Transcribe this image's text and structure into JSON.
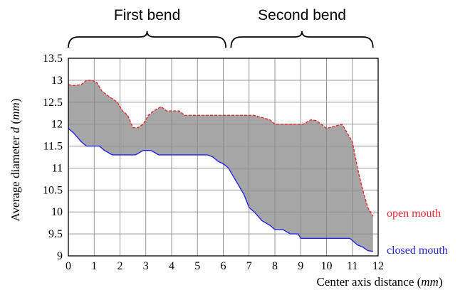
{
  "chart_data": {
    "type": "area",
    "xlabel": "Center axis distance (mm)",
    "ylabel": "Average diameter d (mm)",
    "xlabel_parts": [
      "Center axis distance (",
      "mm",
      ")"
    ],
    "ylabel_parts": [
      "Average diameter ",
      "d",
      " (",
      "mm",
      ")"
    ],
    "xlim": [
      0,
      12
    ],
    "ylim": [
      9,
      13.5
    ],
    "xticks": [
      0,
      1,
      2,
      3,
      4,
      5,
      6,
      7,
      8,
      9,
      10,
      11,
      12
    ],
    "yticks": [
      9,
      9.5,
      10,
      10.5,
      11,
      11.5,
      12,
      12.5,
      13,
      13.5
    ],
    "grid": true,
    "fill_color": "#a6a6a6",
    "brace_labels": [
      {
        "text": "First bend",
        "x_start": 0,
        "x_end": 6.1
      },
      {
        "text": "Second bend",
        "x_start": 6.3,
        "x_end": 11.8
      }
    ],
    "series": [
      {
        "name": "open mouth",
        "color": "#e8282b",
        "style": "dashed",
        "x": [
          0,
          0.2,
          0.5,
          0.7,
          0.9,
          1.1,
          1.3,
          1.6,
          1.9,
          2.1,
          2.3,
          2.5,
          2.7,
          2.9,
          3.1,
          3.3,
          3.6,
          3.8,
          4.1,
          4.3,
          4.5,
          4.8,
          5.2,
          5.6,
          6.0,
          6.4,
          6.8,
          7.2,
          7.5,
          7.8,
          8.0,
          8.3,
          8.6,
          8.9,
          9.1,
          9.4,
          9.6,
          9.8,
          10.0,
          10.3,
          10.6,
          10.8,
          11.0,
          11.2,
          11.4,
          11.6,
          11.8
        ],
        "y": [
          12.9,
          12.88,
          12.9,
          13.0,
          13.0,
          12.95,
          12.75,
          12.62,
          12.5,
          12.3,
          12.2,
          11.92,
          11.92,
          12.0,
          12.2,
          12.3,
          12.4,
          12.3,
          12.3,
          12.3,
          12.2,
          12.2,
          12.2,
          12.2,
          12.2,
          12.2,
          12.2,
          12.2,
          12.15,
          12.1,
          12.0,
          12.0,
          12.0,
          12.0,
          12.0,
          12.1,
          12.08,
          12.0,
          11.9,
          11.95,
          12.0,
          11.8,
          11.6,
          11.0,
          10.5,
          10.1,
          9.9
        ]
      },
      {
        "name": "closed mouth",
        "color": "#2424e8",
        "style": "solid",
        "x": [
          0,
          0.2,
          0.5,
          0.7,
          1.0,
          1.2,
          1.4,
          1.7,
          2.0,
          2.3,
          2.6,
          2.9,
          3.2,
          3.5,
          3.8,
          4.2,
          4.6,
          5.0,
          5.4,
          5.6,
          5.8,
          6.0,
          6.2,
          6.4,
          6.6,
          6.8,
          7.0,
          7.2,
          7.5,
          7.8,
          8.0,
          8.3,
          8.6,
          8.9,
          9.0,
          9.3,
          9.6,
          10.0,
          10.5,
          10.9,
          11.0,
          11.2,
          11.4,
          11.6,
          11.8
        ],
        "y": [
          11.9,
          11.8,
          11.6,
          11.5,
          11.5,
          11.5,
          11.4,
          11.3,
          11.3,
          11.3,
          11.3,
          11.4,
          11.4,
          11.3,
          11.3,
          11.3,
          11.3,
          11.3,
          11.3,
          11.25,
          11.15,
          11.1,
          11.0,
          10.8,
          10.6,
          10.4,
          10.1,
          10.0,
          9.8,
          9.7,
          9.6,
          9.6,
          9.5,
          9.5,
          9.4,
          9.4,
          9.4,
          9.4,
          9.4,
          9.4,
          9.35,
          9.25,
          9.2,
          9.12,
          9.1
        ]
      }
    ],
    "legend": [
      "open mouth",
      "closed mouth"
    ]
  }
}
